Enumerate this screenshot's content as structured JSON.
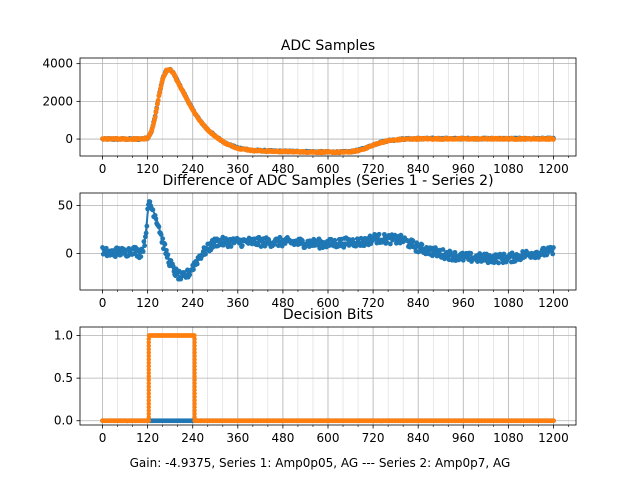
{
  "figure": {
    "caption": "Gain: -4.9375, Series 1: Amp0p05, AG --- Series 2: Amp0p7, AG"
  },
  "colors": {
    "series1": "#1f77b4",
    "series2": "#ff7f0e",
    "grid": "#b0b0b0",
    "axis": "#000000"
  },
  "chart_data": [
    {
      "type": "scatter",
      "title": "ADC Samples",
      "xlabel": "",
      "ylabel": "",
      "xlim": [
        -60,
        1260
      ],
      "ylim": [
        -900,
        4300
      ],
      "xticks": [
        0,
        120,
        240,
        360,
        480,
        600,
        720,
        840,
        960,
        1080,
        1200
      ],
      "yticks": [
        0,
        2000,
        4000
      ],
      "grid": true,
      "x_minor_step": 40,
      "series": [
        {
          "color": "#1f77b4",
          "x": [
            0,
            100,
            120,
            130,
            140,
            150,
            160,
            170,
            180,
            190,
            200,
            220,
            240,
            260,
            280,
            300,
            330,
            360,
            400,
            450,
            500,
            560,
            600,
            640,
            660,
            680,
            700,
            720,
            740,
            760,
            800,
            840,
            900,
            1000,
            1100,
            1200
          ],
          "y": [
            0,
            0,
            50,
            400,
            1200,
            2300,
            3200,
            3650,
            3680,
            3450,
            3050,
            2300,
            1550,
            950,
            500,
            150,
            -250,
            -480,
            -600,
            -640,
            -660,
            -680,
            -690,
            -690,
            -670,
            -600,
            -480,
            -320,
            -180,
            -80,
            0,
            20,
            20,
            20,
            20,
            20
          ]
        },
        {
          "color": "#ff7f0e",
          "x": [
            0,
            100,
            120,
            130,
            140,
            150,
            160,
            170,
            180,
            190,
            200,
            220,
            240,
            260,
            280,
            300,
            330,
            360,
            400,
            450,
            500,
            560,
            600,
            640,
            660,
            680,
            700,
            720,
            740,
            760,
            800,
            840,
            900,
            1000,
            1100,
            1200
          ],
          "y": [
            0,
            0,
            30,
            380,
            1180,
            2280,
            3180,
            3630,
            3660,
            3440,
            3040,
            2290,
            1540,
            940,
            490,
            140,
            -260,
            -490,
            -610,
            -650,
            -670,
            -690,
            -700,
            -700,
            -680,
            -610,
            -490,
            -330,
            -190,
            -90,
            -10,
            10,
            10,
            10,
            10,
            10
          ]
        }
      ]
    },
    {
      "type": "scatter",
      "title": "Difference of ADC Samples (Series 1 - Series 2)",
      "xlabel": "",
      "ylabel": "",
      "xlim": [
        -60,
        1260
      ],
      "ylim": [
        -38,
        63
      ],
      "xticks": [
        0,
        120,
        240,
        360,
        480,
        600,
        720,
        840,
        960,
        1080,
        1200
      ],
      "yticks": [
        0,
        50
      ],
      "grid": true,
      "x_minor_step": 40,
      "series": [
        {
          "color": "#1f77b4",
          "x": [
            0,
            20,
            40,
            60,
            80,
            100,
            110,
            115,
            120,
            125,
            130,
            140,
            150,
            160,
            170,
            180,
            190,
            200,
            210,
            220,
            230,
            240,
            260,
            280,
            300,
            360,
            420,
            480,
            540,
            600,
            660,
            700,
            720,
            760,
            800,
            840,
            900,
            960,
            1020,
            1080,
            1140,
            1200
          ],
          "y": [
            2,
            0,
            2,
            1,
            4,
            0,
            8,
            20,
            42,
            55,
            48,
            40,
            28,
            12,
            0,
            -10,
            -18,
            -22,
            -25,
            -24,
            -20,
            -14,
            -2,
            5,
            12,
            12,
            12,
            12,
            11,
            10,
            12,
            12,
            16,
            15,
            14,
            6,
            0,
            -4,
            -5,
            -5,
            0,
            2
          ]
        }
      ]
    },
    {
      "type": "line",
      "title": "Decision Bits",
      "xlabel": "Gain: -4.9375, Series 1: Amp0p05, AG --- Series 2: Amp0p7, AG",
      "ylabel": "",
      "xlim": [
        -60,
        1260
      ],
      "ylim": [
        -0.05,
        1.1
      ],
      "xticks": [
        0,
        120,
        240,
        360,
        480,
        600,
        720,
        840,
        960,
        1080,
        1200
      ],
      "yticks": [
        0.0,
        0.5,
        1.0
      ],
      "grid": true,
      "x_minor_step": 40,
      "series": [
        {
          "color": "#1f77b4",
          "x": [
            0,
            1200
          ],
          "y": [
            0,
            0
          ]
        },
        {
          "color": "#ff7f0e",
          "x": [
            0,
            123,
            123,
            245,
            245,
            1200
          ],
          "y": [
            0,
            0,
            1,
            1,
            0,
            0
          ]
        }
      ]
    }
  ]
}
